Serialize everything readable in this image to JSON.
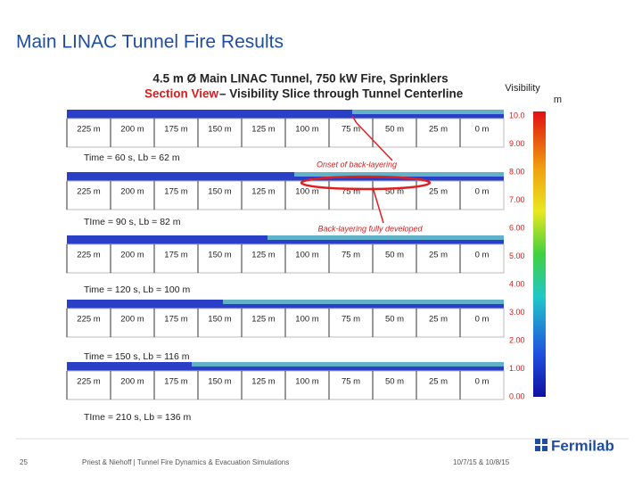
{
  "header": {
    "title": "Main LINAC Tunnel Fire Results"
  },
  "figure": {
    "title": "4.5 m Ø Main LINAC Tunnel, 750 kW Fire, Sprinklers",
    "subtitle_highlight": "Section View",
    "subtitle_rest": "– Visibility Slice through Tunnel Centerline",
    "distances": [
      "225 m",
      "200 m",
      "175 m",
      "150 m",
      "125 m",
      "100 m",
      "75 m",
      "50 m",
      "25 m",
      "0 m"
    ],
    "panels": [
      "Time = 60 s, Lb = 62 m",
      "TIme = 90 s, Lb = 82 m",
      "Time = 120 s, Lb = 100 m",
      "Time = 150 s, Lb = 116 m",
      "TIme = 210 s, Lb = 136 m"
    ],
    "annotations": [
      "Onset of back-layering",
      "Back-layering fully developed"
    ],
    "colorbar": {
      "title": "Visibility",
      "unit": "m",
      "labels": [
        "10.0",
        "9.00",
        "8.00",
        "7.00",
        "6.00",
        "5.00",
        "4.00",
        "3.00",
        "2.00",
        "1.00",
        "0.00"
      ]
    }
  },
  "footer": {
    "page": "25",
    "text": "Priest & Niehoff | Tunnel Fire Dynamics & Evacuation Simulations",
    "date": "10/7/15 & 10/8/15",
    "logo": "Fermilab"
  }
}
